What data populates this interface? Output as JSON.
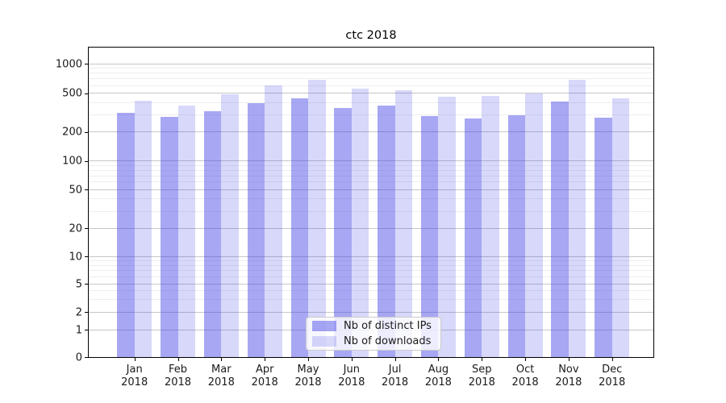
{
  "chart_data": {
    "type": "bar",
    "title": "ctc 2018",
    "categories": [
      "Jan",
      "Feb",
      "Mar",
      "Apr",
      "May",
      "Jun",
      "Jul",
      "Aug",
      "Sep",
      "Oct",
      "Nov",
      "Dec"
    ],
    "category_year": "2018",
    "series": [
      {
        "name": "Nb of distinct IPs",
        "color_hex": "#aaaaf4",
        "values": [
          312,
          285,
          324,
          395,
          448,
          350,
          375,
          290,
          273,
          297,
          413,
          282
        ]
      },
      {
        "name": "Nb of downloads",
        "color_hex": "#d8d8f8",
        "values": [
          420,
          375,
          490,
          604,
          686,
          560,
          540,
          465,
          468,
          495,
          686,
          440
        ]
      }
    ],
    "xlabel": "",
    "ylabel": "",
    "yscale": "symlog",
    "yticks": [
      0,
      1,
      2,
      5,
      10,
      20,
      50,
      100,
      200,
      500,
      1000
    ],
    "minor_yticks": [
      3,
      4,
      6,
      7,
      8,
      9,
      30,
      40,
      60,
      70,
      80,
      90,
      300,
      400,
      600,
      700,
      800,
      900
    ],
    "ylim_top": 1465,
    "grid": true,
    "legend_position": "lower-center",
    "background_color": "#ffffff",
    "spine_color": "#000000"
  }
}
